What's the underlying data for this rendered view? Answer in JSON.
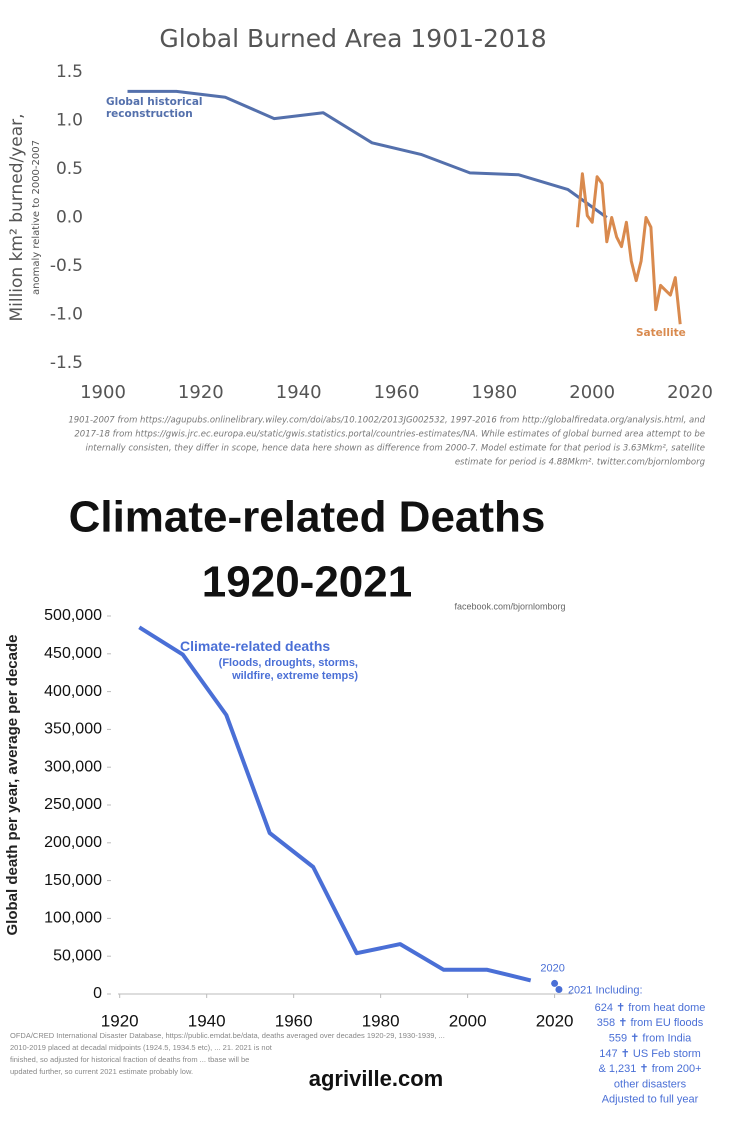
{
  "chart_data": [
    {
      "type": "line",
      "title": "Global Burned Area 1901-2018",
      "y_label": "Million km² burned/year,",
      "y_label_note": "anomaly relative to 2000-2007",
      "xlim": [
        1900,
        2020
      ],
      "xticks": [
        1900,
        1920,
        1940,
        1960,
        1980,
        2000,
        2020
      ],
      "ylim": [
        -1.5,
        1.5
      ],
      "yticks": [
        1.5,
        {
          "value": 1,
          "label": "1.0"
        },
        0.5,
        {
          "value": 0,
          "label": "0.0"
        },
        -0.5,
        {
          "value": -1,
          "label": "-1.0"
        },
        -1.5
      ],
      "series": [
        {
          "name": "Global historical reconstruction",
          "color": "#5470ac",
          "x": [
            1905,
            1915,
            1925,
            1935,
            1945,
            1955,
            1965,
            1975,
            1985,
            1995,
            2003
          ],
          "values": [
            1.3,
            1.3,
            1.24,
            1.02,
            1.08,
            0.77,
            0.65,
            0.46,
            0.44,
            0.29,
            0.0
          ]
        },
        {
          "name": "Satellite",
          "color": "#d98a4e",
          "x": [
            1997,
            1998,
            1999,
            2000,
            2001,
            2002,
            2003,
            2004,
            2005,
            2006,
            2007,
            2008,
            2009,
            2010,
            2011,
            2012,
            2013,
            2014,
            2015,
            2016,
            2017,
            2018
          ],
          "values": [
            -0.1,
            0.45,
            0.02,
            -0.05,
            0.42,
            0.35,
            -0.25,
            0.0,
            -0.2,
            -0.3,
            -0.05,
            -0.45,
            -0.65,
            -0.45,
            0.0,
            -0.1,
            -0.95,
            -0.7,
            -0.75,
            -0.8,
            -0.62,
            -1.1
          ]
        }
      ],
      "source_note": [
        "1901-2007 from https://agupubs.onlinelibrary.wiley.com/doi/abs/10.1002/2013JG002532, 1997-2016 from http://globalfiredata.org/analysis.html, and",
        "2017-18 from  https://gwis.jrc.ec.europa.eu/static/gwis.statistics.portal/countries-estimates/NA. While estimates of global burned area attempt to be",
        "internally consisten, they differ in scope, hence data here shown as difference from 2000-7. Model estimate for that period is 3.63Mkm², satellite",
        "estimate for period is 4.88Mkm². twitter.com/bjornlomborg"
      ]
    },
    {
      "type": "line",
      "title": [
        "Climate-related Deaths",
        "1920-2021"
      ],
      "credit": "facebook.com/bjornlomborg",
      "y_label": "Global death per year, average per decade",
      "xlim": [
        1918,
        2024
      ],
      "xticks": [
        1920,
        1940,
        1960,
        1980,
        2000,
        2020
      ],
      "ylim": [
        0,
        500000
      ],
      "yticks": [
        0,
        {
          "value": 50000,
          "label": "50,000"
        },
        {
          "value": 100000,
          "label": "100,000"
        },
        {
          "value": 150000,
          "label": "150,000"
        },
        {
          "value": 200000,
          "label": "200,000"
        },
        {
          "value": 250000,
          "label": "250,000"
        },
        {
          "value": 300000,
          "label": "300,000"
        },
        {
          "value": 350000,
          "label": "350,000"
        },
        {
          "value": 400000,
          "label": "400,000"
        },
        {
          "value": 450000,
          "label": "450,000"
        },
        {
          "value": 500000,
          "label": "500,000"
        }
      ],
      "series": [
        {
          "name": "Climate-related deaths",
          "note": "(Floods, droughts, storms, wildfire, extreme temps)",
          "color": "#4a6fd6",
          "x": [
            1924.5,
            1934.5,
            1944.5,
            1954.5,
            1964.5,
            1974.5,
            1984.5,
            1994.5,
            2004.5,
            2014.5
          ],
          "values": [
            485000,
            449000,
            369000,
            213000,
            168000,
            54000,
            66000,
            32000,
            32000,
            18000
          ]
        },
        {
          "color": "#4a6fd6",
          "x": [
            2020,
            2021
          ],
          "values": [
            14000,
            6000
          ],
          "point_labels": [
            "2020",
            "2021 Including:"
          ]
        }
      ],
      "annotation_2021": [
        "624 ✝ from heat dome",
        "358 ✝ from EU floods",
        "559 ✝ from India",
        "147 ✝ US Feb storm",
        "& 1,231 ✝ from 200+",
        "other disasters",
        "Adjusted to full year"
      ],
      "source_note": [
        "OFDA/CRED International Disaster Database, https://public.emdat.be/data, deaths averaged over decades 1920-29, 1930-1939, ...",
        "2010-2019 placed at decadal midpoints (1924.5, 1934.5 etc), ...                                      21. 2021 is not",
        "finished, so adjusted for historical fraction of deaths from ...                                  tbase will be",
        "updated further, so current 2021 estimate probably low."
      ]
    }
  ],
  "watermark": "agriville.com"
}
